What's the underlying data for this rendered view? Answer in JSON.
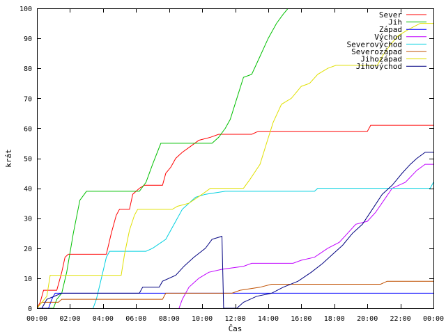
{
  "chart_data": {
    "type": "line",
    "title": "",
    "xlabel": "Čas",
    "ylabel": "krát",
    "xlim": [
      0,
      24
    ],
    "ylim": [
      0,
      100
    ],
    "x_ticks": [
      {
        "value": 0,
        "label": "00:00"
      },
      {
        "value": 2,
        "label": "02:00"
      },
      {
        "value": 4,
        "label": "04:00"
      },
      {
        "value": 6,
        "label": "06:00"
      },
      {
        "value": 8,
        "label": "08:00"
      },
      {
        "value": 10,
        "label": "10:00"
      },
      {
        "value": 12,
        "label": "12:00"
      },
      {
        "value": 14,
        "label": "14:00"
      },
      {
        "value": 16,
        "label": "16:00"
      },
      {
        "value": 18,
        "label": "18:00"
      },
      {
        "value": 20,
        "label": "20:00"
      },
      {
        "value": 22,
        "label": "22:00"
      },
      {
        "value": 24,
        "label": "00:00"
      }
    ],
    "y_ticks": [
      0,
      10,
      20,
      30,
      40,
      50,
      60,
      70,
      80,
      90,
      100
    ],
    "legend_position": "top-right",
    "grid": false,
    "series": [
      {
        "name": "Sever",
        "color": "#ff0000",
        "points": [
          [
            0,
            0
          ],
          [
            0.2,
            2
          ],
          [
            0.4,
            6
          ],
          [
            1.2,
            6
          ],
          [
            1.5,
            12
          ],
          [
            1.7,
            17
          ],
          [
            1.9,
            18
          ],
          [
            4.2,
            18
          ],
          [
            4.5,
            25
          ],
          [
            4.8,
            31
          ],
          [
            5.0,
            33
          ],
          [
            5.6,
            33
          ],
          [
            5.8,
            38
          ],
          [
            6.2,
            40
          ],
          [
            6.5,
            41
          ],
          [
            7.6,
            41
          ],
          [
            7.8,
            45
          ],
          [
            8.1,
            47
          ],
          [
            8.4,
            50
          ],
          [
            8.8,
            52
          ],
          [
            9.3,
            54
          ],
          [
            9.8,
            56
          ],
          [
            10.5,
            57
          ],
          [
            11.0,
            58
          ],
          [
            13.0,
            58
          ],
          [
            13.4,
            59
          ],
          [
            20.0,
            59
          ],
          [
            20.2,
            61
          ],
          [
            24,
            61
          ]
        ]
      },
      {
        "name": "Jih",
        "color": "#00c000",
        "points": [
          [
            0,
            0
          ],
          [
            1.0,
            0
          ],
          [
            1.2,
            3
          ],
          [
            1.5,
            5
          ],
          [
            1.8,
            12
          ],
          [
            2.2,
            25
          ],
          [
            2.6,
            36
          ],
          [
            3.0,
            39
          ],
          [
            6.2,
            39
          ],
          [
            6.6,
            42
          ],
          [
            7.0,
            48
          ],
          [
            7.5,
            55
          ],
          [
            10.6,
            55
          ],
          [
            11.0,
            57
          ],
          [
            11.4,
            60
          ],
          [
            11.7,
            63
          ],
          [
            12.1,
            70
          ],
          [
            12.5,
            77
          ],
          [
            13.0,
            78
          ],
          [
            13.5,
            84
          ],
          [
            14.0,
            90
          ],
          [
            14.5,
            95
          ],
          [
            14.9,
            98
          ],
          [
            15.2,
            100
          ]
        ]
      },
      {
        "name": "Západ",
        "color": "#0000ff",
        "points": [
          [
            0,
            0
          ],
          [
            0.7,
            0
          ],
          [
            0.9,
            3
          ],
          [
            1.1,
            5
          ],
          [
            2.5,
            5
          ],
          [
            2.7,
            5
          ],
          [
            24,
            5
          ]
        ]
      },
      {
        "name": "Východ",
        "color": "#c000ff",
        "points": [
          [
            8.6,
            0
          ],
          [
            8.8,
            3
          ],
          [
            9.2,
            7
          ],
          [
            9.8,
            10
          ],
          [
            10.4,
            12
          ],
          [
            11.2,
            13
          ],
          [
            12.5,
            14
          ],
          [
            13.0,
            15
          ],
          [
            15.5,
            15
          ],
          [
            16.0,
            16
          ],
          [
            16.8,
            17
          ],
          [
            17.6,
            20
          ],
          [
            18.3,
            22
          ],
          [
            18.8,
            25
          ],
          [
            19.3,
            28
          ],
          [
            20.0,
            29
          ],
          [
            20.5,
            32
          ],
          [
            21.0,
            36
          ],
          [
            21.5,
            40
          ],
          [
            22.3,
            42
          ],
          [
            23.0,
            46
          ],
          [
            23.5,
            48
          ],
          [
            24,
            48
          ]
        ]
      },
      {
        "name": "Severovýchod",
        "color": "#00d0e0",
        "points": [
          [
            3.4,
            0
          ],
          [
            3.6,
            3
          ],
          [
            3.9,
            10
          ],
          [
            4.2,
            17
          ],
          [
            4.4,
            19
          ],
          [
            6.6,
            19
          ],
          [
            7.0,
            20
          ],
          [
            7.8,
            23
          ],
          [
            8.3,
            28
          ],
          [
            8.8,
            33
          ],
          [
            9.2,
            35
          ],
          [
            9.6,
            37
          ],
          [
            10.2,
            38
          ],
          [
            11.4,
            39
          ],
          [
            16.8,
            39
          ],
          [
            17.0,
            40
          ],
          [
            23.8,
            40
          ],
          [
            24,
            42
          ]
        ]
      },
      {
        "name": "Severozápad",
        "color": "#c05000",
        "points": [
          [
            0,
            0
          ],
          [
            0.3,
            2
          ],
          [
            1.3,
            2
          ],
          [
            1.5,
            3
          ],
          [
            7.6,
            3
          ],
          [
            7.8,
            5
          ],
          [
            11.8,
            5
          ],
          [
            12.3,
            6
          ],
          [
            13.5,
            7
          ],
          [
            14.2,
            8
          ],
          [
            20.8,
            8
          ],
          [
            21.2,
            9
          ],
          [
            24,
            9
          ]
        ]
      },
      {
        "name": "Jihozápad",
        "color": "#e0e000",
        "points": [
          [
            0,
            0
          ],
          [
            0.3,
            2
          ],
          [
            0.6,
            4
          ],
          [
            0.8,
            11
          ],
          [
            5.1,
            11
          ],
          [
            5.3,
            18
          ],
          [
            5.6,
            26
          ],
          [
            5.9,
            31
          ],
          [
            6.1,
            33
          ],
          [
            8.2,
            33
          ],
          [
            8.5,
            34
          ],
          [
            9.2,
            35
          ],
          [
            10.0,
            38
          ],
          [
            10.5,
            40
          ],
          [
            12.5,
            40
          ],
          [
            12.9,
            43
          ],
          [
            13.5,
            48
          ],
          [
            13.9,
            55
          ],
          [
            14.3,
            62
          ],
          [
            14.8,
            68
          ],
          [
            15.4,
            70
          ],
          [
            16.0,
            74
          ],
          [
            16.5,
            75
          ],
          [
            17.0,
            78
          ],
          [
            17.6,
            80
          ],
          [
            18.1,
            81
          ],
          [
            20.6,
            81
          ],
          [
            20.9,
            84
          ],
          [
            21.4,
            88
          ],
          [
            21.9,
            91
          ],
          [
            22.5,
            93
          ],
          [
            23.2,
            95
          ],
          [
            24,
            95
          ]
        ]
      },
      {
        "name": "Jihovýchod",
        "color": "#000080",
        "points": [
          [
            0,
            0
          ],
          [
            0.3,
            0
          ],
          [
            0.6,
            3
          ],
          [
            1.5,
            5
          ],
          [
            6.2,
            5
          ],
          [
            6.4,
            7
          ],
          [
            7.4,
            7
          ],
          [
            7.6,
            9
          ],
          [
            8.4,
            11
          ],
          [
            8.9,
            14
          ],
          [
            9.5,
            17
          ],
          [
            10.2,
            20
          ],
          [
            10.6,
            23
          ],
          [
            11.2,
            24
          ],
          [
            11.3,
            0
          ],
          [
            12.1,
            0
          ],
          [
            12.5,
            2
          ],
          [
            13.3,
            4
          ],
          [
            14.2,
            5
          ],
          [
            14.9,
            7
          ],
          [
            15.8,
            9
          ],
          [
            16.6,
            12
          ],
          [
            17.3,
            15
          ],
          [
            17.9,
            18
          ],
          [
            18.5,
            21
          ],
          [
            19.1,
            25
          ],
          [
            19.7,
            28
          ],
          [
            20.3,
            33
          ],
          [
            20.9,
            38
          ],
          [
            21.5,
            41
          ],
          [
            22.1,
            45
          ],
          [
            22.6,
            48
          ],
          [
            23.0,
            50
          ],
          [
            23.5,
            52
          ],
          [
            24,
            52
          ]
        ]
      }
    ]
  }
}
